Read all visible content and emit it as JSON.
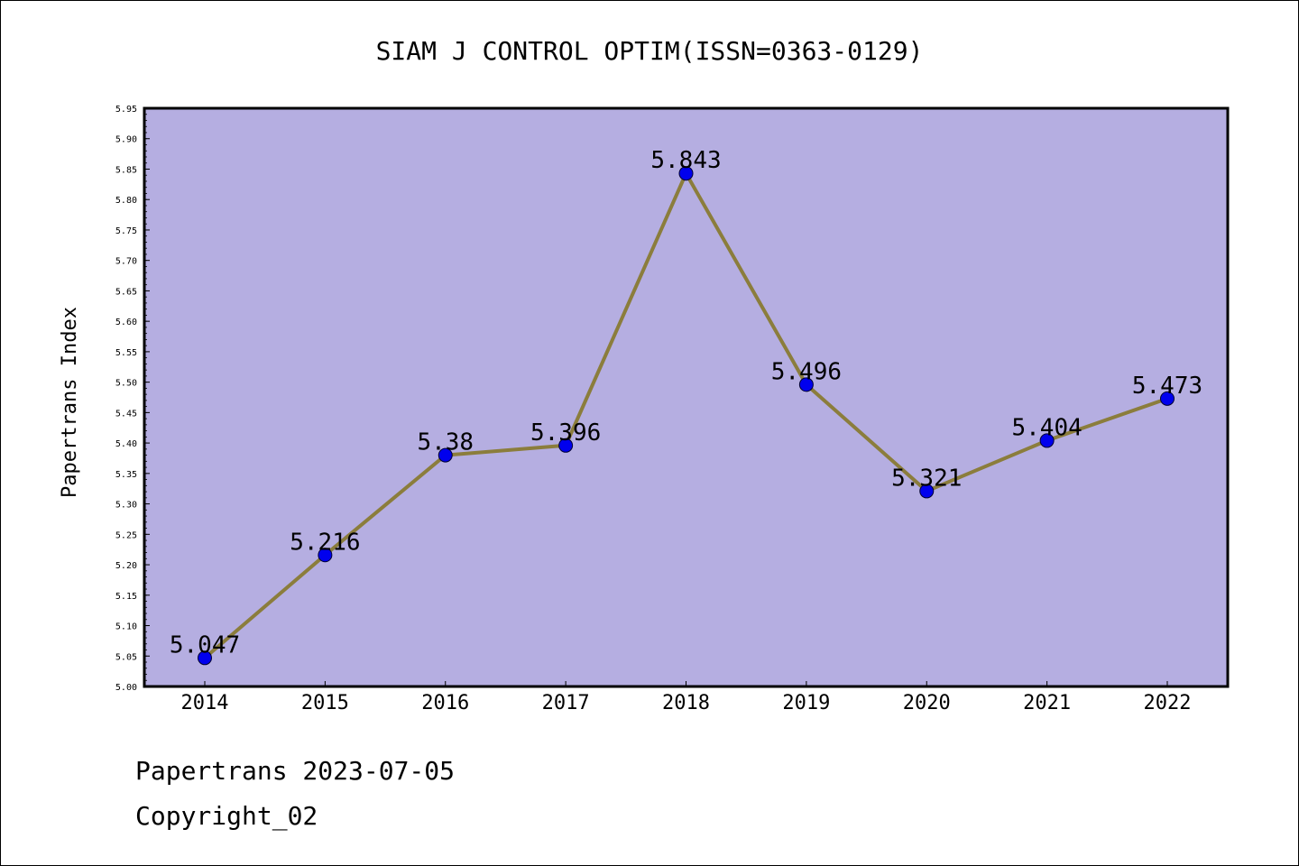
{
  "chart_data": {
    "type": "line",
    "title": "SIAM J CONTROL OPTIM(ISSN=0363-0129)",
    "xlabel": "",
    "ylabel": "Papertrans Index",
    "categories": [
      "2014",
      "2015",
      "2016",
      "2017",
      "2018",
      "2019",
      "2020",
      "2021",
      "2022"
    ],
    "series": [
      {
        "values": [
          5.047,
          5.216,
          5.38,
          5.396,
          5.843,
          5.496,
          5.321,
          5.404,
          5.473
        ]
      }
    ],
    "data_labels": [
      "5.047",
      "5.216",
      "5.38",
      "5.396",
      "5.843",
      "5.496",
      "5.321",
      "5.404",
      "5.473"
    ],
    "ylim": [
      5.0,
      5.95
    ],
    "y_ticks": [
      "5.00",
      "5.05",
      "5.10",
      "5.15",
      "5.20",
      "5.25",
      "5.30",
      "5.35",
      "5.40",
      "5.45",
      "5.50",
      "5.55",
      "5.60",
      "5.65",
      "5.70",
      "5.75",
      "5.80",
      "5.85",
      "5.90",
      "5.95"
    ],
    "grid": false,
    "legend": "none",
    "colors": {
      "plot_background": "#b5aee1",
      "line": "#8b7d3c",
      "marker": "#0000ee"
    }
  },
  "footer": {
    "line1": "Papertrans 2023-07-05",
    "line2": "Copyright_02"
  }
}
